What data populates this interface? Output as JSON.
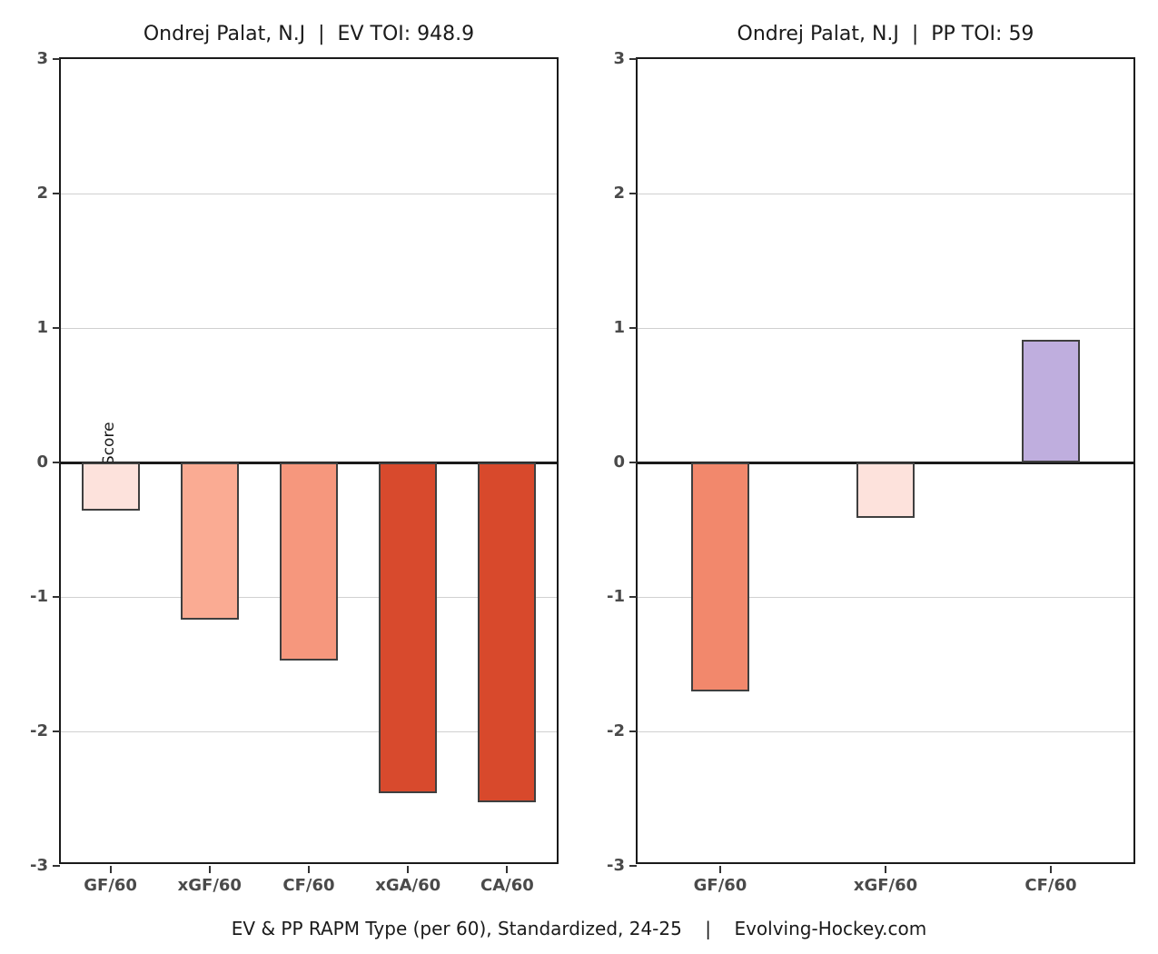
{
  "figure": {
    "background": "#ffffff",
    "ylabel": "Z-Score",
    "caption": "EV & PP RAPM Type (per 60), Standardized, 24-25    |    Evolving-Hockey.com"
  },
  "colors": {
    "axis": "#1a1a1a",
    "gridline": "#d0d0d0",
    "tick_label": "#4a4a4a",
    "bar_border": "#3f3f3f"
  },
  "chart_data": [
    {
      "type": "bar",
      "title": "Ondrej Palat, N.J  |  EV TOI: 948.9",
      "categories": [
        "GF/60",
        "xGF/60",
        "CF/60",
        "xGA/60",
        "CA/60"
      ],
      "values": [
        -0.36,
        -1.17,
        -1.47,
        -2.46,
        -2.53
      ],
      "bar_colors": [
        "#fde2dc",
        "#faab93",
        "#f6977d",
        "#d84a2d",
        "#d8492c"
      ],
      "xlabel": "",
      "ylabel": "Z-Score",
      "ylim": [
        -3,
        3
      ],
      "yticks": [
        3,
        2,
        1,
        0,
        -1,
        -2,
        -3
      ],
      "grid": true,
      "legend": "none"
    },
    {
      "type": "bar",
      "title": "Ondrej Palat, N.J  |  PP TOI: 59",
      "categories": [
        "GF/60",
        "xGF/60",
        "CF/60"
      ],
      "values": [
        -1.7,
        -0.41,
        0.91
      ],
      "bar_colors": [
        "#f2886c",
        "#fde2dc",
        "#bfaede"
      ],
      "xlabel": "",
      "ylabel": "Z-Score",
      "ylim": [
        -3,
        3
      ],
      "yticks": [
        3,
        2,
        1,
        0,
        -1,
        -2,
        -3
      ],
      "grid": true,
      "legend": "none"
    }
  ]
}
